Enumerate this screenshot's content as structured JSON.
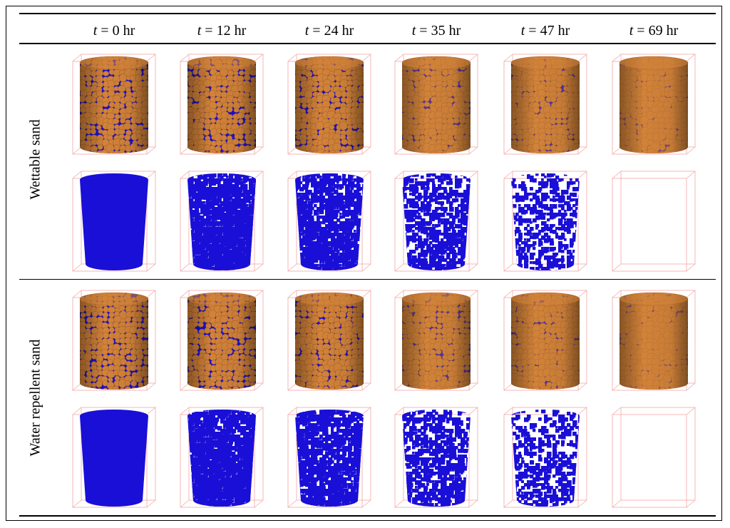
{
  "columns": [
    {
      "label": "t = 0 hr",
      "var": "t",
      "rest": " = 0 hr",
      "solid_fraction": 0.55,
      "blue_density": 1.0
    },
    {
      "label": "t = 12 hr",
      "var": "t",
      "rest": " = 12 hr",
      "solid_fraction": 0.6,
      "blue_density": 0.95
    },
    {
      "label": "t = 24 hr",
      "var": "t",
      "rest": " = 24 hr",
      "solid_fraction": 0.68,
      "blue_density": 0.85
    },
    {
      "label": "t = 35 hr",
      "var": "t",
      "rest": " = 35 hr",
      "solid_fraction": 0.82,
      "blue_density": 0.65
    },
    {
      "label": "t = 47 hr",
      "var": "t",
      "rest": " = 47 hr",
      "solid_fraction": 0.93,
      "blue_density": 0.45
    },
    {
      "label": "t = 69 hr",
      "var": "t",
      "rest": " = 69 hr",
      "solid_fraction": 1.0,
      "blue_density": 0.08
    }
  ],
  "rows": [
    {
      "label": "Wettable sand"
    },
    {
      "label": "Water repellent sand"
    }
  ],
  "colors": {
    "sand": "#d2833a",
    "sand_dark": "#a55d22",
    "water": "#1a0fd6",
    "box": "#f4a6a6"
  }
}
